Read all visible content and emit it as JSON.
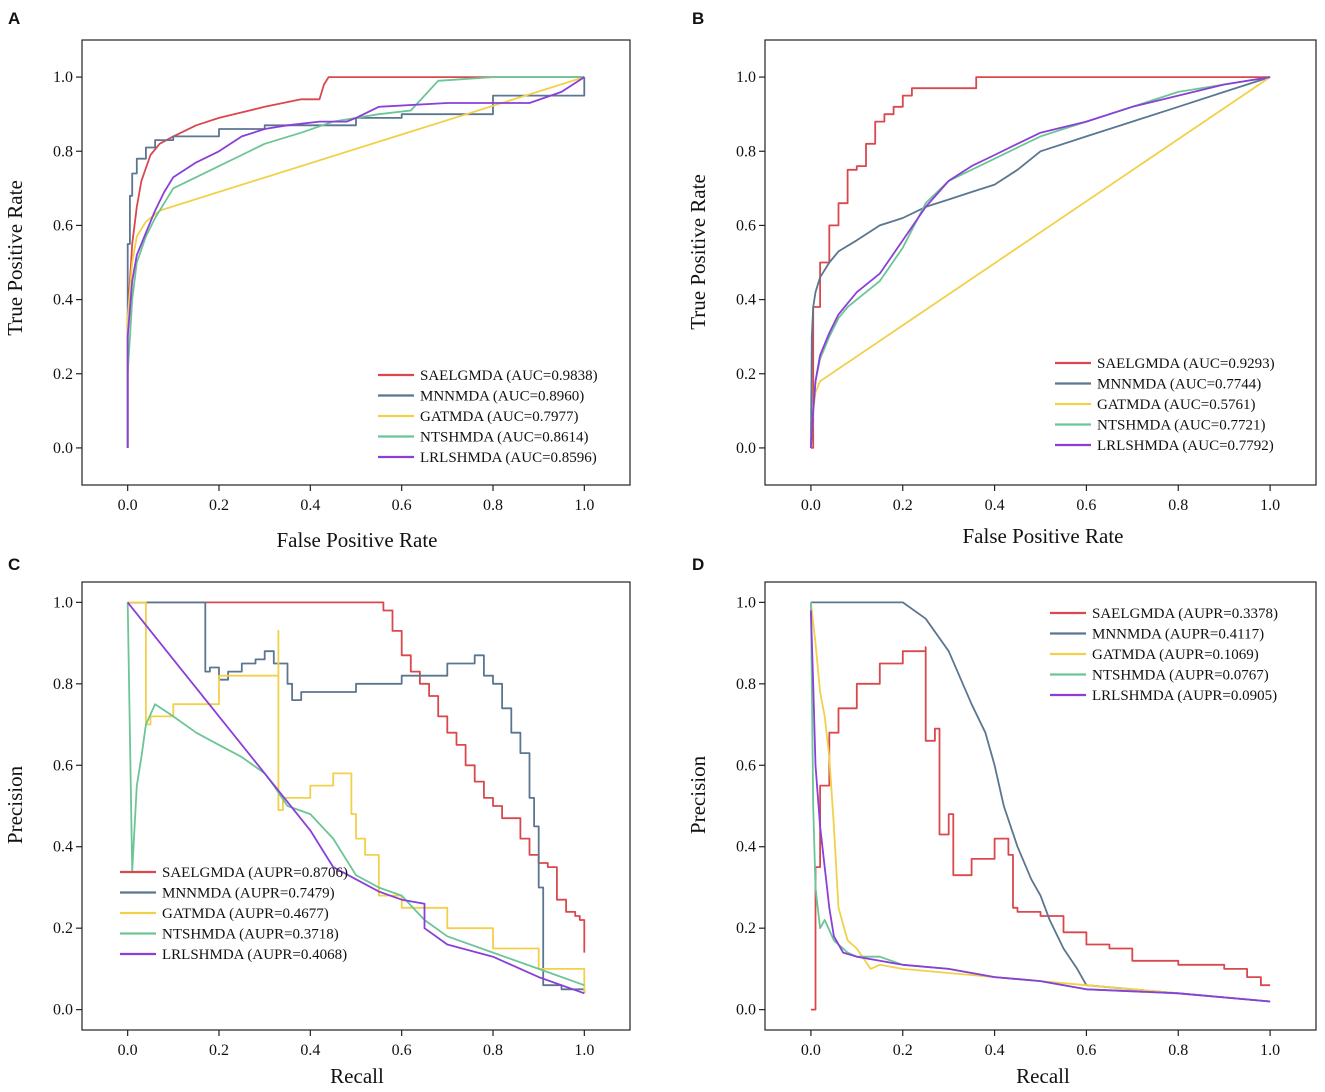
{
  "colors": {
    "SAELGMDA": "#d9484d",
    "MNNMDA": "#5b7690",
    "GATMDA": "#f2d04a",
    "NTSHMDA": "#6cc595",
    "LRLSHMDA": "#8a3fd9"
  },
  "chart_data": [
    {
      "panel": "A",
      "type": "line",
      "xlabel": "False Positive Rate",
      "ylabel": "True Positive Rate",
      "xlim": [
        -0.1,
        1.1
      ],
      "ylim": [
        -0.1,
        1.1
      ],
      "xticks": [
        "0.0",
        "0.2",
        "0.4",
        "0.6",
        "0.8",
        "1.0"
      ],
      "yticks": [
        "0.0",
        "0.2",
        "0.4",
        "0.6",
        "0.8",
        "1.0"
      ],
      "legend_position": "bottom-right",
      "series": [
        {
          "name": "SAELGMDA",
          "label": "SAELGMDA (AUC=0.9838)",
          "x": [
            0,
            0,
            0.01,
            0.02,
            0.03,
            0.05,
            0.07,
            0.1,
            0.15,
            0.2,
            0.3,
            0.38,
            0.42,
            0.43,
            0.44,
            0.5,
            0.7,
            1.0
          ],
          "y": [
            0,
            0.35,
            0.55,
            0.65,
            0.72,
            0.79,
            0.82,
            0.84,
            0.87,
            0.89,
            0.92,
            0.94,
            0.94,
            0.98,
            1.0,
            1.0,
            1.0,
            1.0
          ]
        },
        {
          "name": "MNNMDA",
          "label": "MNNMDA (AUC=0.8960)",
          "x": [
            0,
            0,
            0.005,
            0.01,
            0.02,
            0.04,
            0.06,
            0.1,
            0.2,
            0.3,
            0.5,
            0.6,
            0.8,
            1.0
          ],
          "y": [
            0,
            0.55,
            0.68,
            0.74,
            0.78,
            0.81,
            0.83,
            0.84,
            0.86,
            0.87,
            0.89,
            0.9,
            0.95,
            1.0
          ],
          "style": "step"
        },
        {
          "name": "GATMDA",
          "label": "GATMDA (AUC=0.7977)",
          "x": [
            0,
            0,
            0.01,
            0.02,
            0.04,
            0.06,
            0.07,
            1.0
          ],
          "y": [
            0,
            0.35,
            0.5,
            0.57,
            0.61,
            0.63,
            0.64,
            1.0
          ]
        },
        {
          "name": "NTSHMDA",
          "label": "NTSHMDA (AUC=0.8614)",
          "x": [
            0,
            0,
            0.01,
            0.02,
            0.04,
            0.06,
            0.08,
            0.1,
            0.15,
            0.2,
            0.25,
            0.3,
            0.38,
            0.45,
            0.55,
            0.62,
            0.65,
            0.68,
            0.8,
            0.9,
            1.0
          ],
          "y": [
            0,
            0.2,
            0.4,
            0.5,
            0.57,
            0.62,
            0.66,
            0.7,
            0.73,
            0.76,
            0.79,
            0.82,
            0.85,
            0.88,
            0.9,
            0.91,
            0.95,
            0.99,
            1.0,
            1.0,
            1.0
          ]
        },
        {
          "name": "LRLSHMDA",
          "label": "LRLSHMDA (AUC=0.8596)",
          "x": [
            0,
            0,
            0.01,
            0.02,
            0.04,
            0.06,
            0.08,
            0.1,
            0.15,
            0.2,
            0.25,
            0.3,
            0.35,
            0.42,
            0.48,
            0.5,
            0.55,
            0.7,
            0.8,
            0.88,
            0.95,
            1.0
          ],
          "y": [
            0,
            0.3,
            0.45,
            0.52,
            0.58,
            0.64,
            0.69,
            0.73,
            0.77,
            0.8,
            0.84,
            0.86,
            0.87,
            0.88,
            0.88,
            0.89,
            0.92,
            0.93,
            0.93,
            0.93,
            0.96,
            1.0
          ]
        }
      ]
    },
    {
      "panel": "B",
      "type": "line",
      "xlabel": "False Positive Rate",
      "ylabel": "True Positive Rate",
      "xlim": [
        -0.1,
        1.1
      ],
      "ylim": [
        -0.1,
        1.1
      ],
      "xticks": [
        "0.0",
        "0.2",
        "0.4",
        "0.6",
        "0.8",
        "1.0"
      ],
      "yticks": [
        "0.0",
        "0.2",
        "0.4",
        "0.6",
        "0.8",
        "1.0"
      ],
      "legend_position": "bottom-right",
      "series": [
        {
          "name": "SAELGMDA",
          "label": "SAELGMDA (AUC=0.9293)",
          "x": [
            0,
            0.005,
            0.005,
            0.02,
            0.02,
            0.04,
            0.04,
            0.06,
            0.06,
            0.08,
            0.08,
            0.1,
            0.12,
            0.12,
            0.14,
            0.14,
            0.16,
            0.18,
            0.2,
            0.22,
            0.25,
            0.3,
            0.35,
            0.36,
            0.5,
            0.7,
            1.0
          ],
          "y": [
            0,
            0.32,
            0.38,
            0.38,
            0.5,
            0.55,
            0.6,
            0.66,
            0.66,
            0.72,
            0.75,
            0.76,
            0.8,
            0.82,
            0.86,
            0.88,
            0.9,
            0.92,
            0.95,
            0.97,
            0.97,
            0.97,
            0.97,
            1.0,
            1.0,
            1.0,
            1.0
          ],
          "style": "step"
        },
        {
          "name": "MNNMDA",
          "label": "MNNMDA (AUC=0.7744)",
          "x": [
            0,
            0.002,
            0.005,
            0.01,
            0.02,
            0.04,
            0.06,
            0.1,
            0.15,
            0.2,
            0.25,
            0.3,
            0.35,
            0.4,
            0.45,
            0.5,
            0.6,
            0.7,
            0.8,
            0.9,
            1.0
          ],
          "y": [
            0,
            0.3,
            0.38,
            0.42,
            0.46,
            0.5,
            0.53,
            0.56,
            0.6,
            0.62,
            0.65,
            0.67,
            0.69,
            0.71,
            0.75,
            0.8,
            0.84,
            0.88,
            0.92,
            0.96,
            1.0
          ]
        },
        {
          "name": "GATMDA",
          "label": "GATMDA (AUC=0.5761)",
          "x": [
            0,
            0.005,
            0.01,
            0.02,
            1.0
          ],
          "y": [
            0,
            0.1,
            0.15,
            0.18,
            1.0
          ]
        },
        {
          "name": "NTSHMDA",
          "label": "NTSHMDA (AUC=0.7721)",
          "x": [
            0,
            0.005,
            0.01,
            0.02,
            0.04,
            0.06,
            0.08,
            0.1,
            0.15,
            0.2,
            0.25,
            0.3,
            0.35,
            0.4,
            0.45,
            0.5,
            0.6,
            0.7,
            0.8,
            0.9,
            1.0
          ],
          "y": [
            0,
            0.1,
            0.18,
            0.24,
            0.3,
            0.35,
            0.38,
            0.4,
            0.45,
            0.54,
            0.66,
            0.72,
            0.75,
            0.78,
            0.81,
            0.84,
            0.88,
            0.92,
            0.96,
            0.98,
            1.0
          ]
        },
        {
          "name": "LRLSHMDA",
          "label": "LRLSHMDA (AUC=0.7792)",
          "x": [
            0,
            0.005,
            0.01,
            0.02,
            0.04,
            0.06,
            0.08,
            0.1,
            0.15,
            0.2,
            0.25,
            0.3,
            0.35,
            0.4,
            0.45,
            0.5,
            0.6,
            0.7,
            0.8,
            0.9,
            1.0
          ],
          "y": [
            0,
            0.1,
            0.18,
            0.25,
            0.31,
            0.36,
            0.39,
            0.42,
            0.47,
            0.56,
            0.65,
            0.72,
            0.76,
            0.79,
            0.82,
            0.85,
            0.88,
            0.92,
            0.95,
            0.98,
            1.0
          ]
        }
      ]
    },
    {
      "panel": "C",
      "type": "line",
      "xlabel": "Recall",
      "ylabel": "Precision",
      "xlim": [
        -0.1,
        1.1
      ],
      "ylim": [
        -0.05,
        1.05
      ],
      "xticks": [
        "0.0",
        "0.2",
        "0.4",
        "0.6",
        "0.8",
        "1.0"
      ],
      "yticks": [
        "0.0",
        "0.2",
        "0.4",
        "0.6",
        "0.8",
        "1.0"
      ],
      "legend_position": "bottom-left",
      "series": [
        {
          "name": "SAELGMDA",
          "label": "SAELGMDA (AUPR=0.8706)",
          "x": [
            0,
            0.2,
            0.4,
            0.55,
            0.56,
            0.58,
            0.6,
            0.62,
            0.64,
            0.66,
            0.68,
            0.7,
            0.72,
            0.74,
            0.76,
            0.78,
            0.8,
            0.82,
            0.84,
            0.86,
            0.88,
            0.9,
            0.92,
            0.94,
            0.96,
            0.98,
            0.99,
            1.0
          ],
          "y": [
            1.0,
            1.0,
            1.0,
            1.0,
            0.98,
            0.93,
            0.87,
            0.83,
            0.8,
            0.77,
            0.72,
            0.68,
            0.65,
            0.6,
            0.56,
            0.52,
            0.5,
            0.47,
            0.47,
            0.42,
            0.38,
            0.36,
            0.35,
            0.27,
            0.24,
            0.23,
            0.22,
            0.14
          ],
          "style": "step"
        },
        {
          "name": "MNNMDA",
          "label": "MNNMDA (AUPR=0.7479)",
          "x": [
            0,
            0.17,
            0.17,
            0.18,
            0.2,
            0.22,
            0.25,
            0.28,
            0.3,
            0.32,
            0.33,
            0.35,
            0.36,
            0.38,
            0.4,
            0.5,
            0.6,
            0.7,
            0.76,
            0.78,
            0.8,
            0.82,
            0.84,
            0.86,
            0.88,
            0.89,
            0.9,
            0.91,
            0.95,
            1.0
          ],
          "y": [
            1.0,
            1.0,
            0.83,
            0.84,
            0.81,
            0.83,
            0.85,
            0.86,
            0.88,
            0.85,
            0.85,
            0.8,
            0.76,
            0.78,
            0.78,
            0.8,
            0.82,
            0.85,
            0.87,
            0.82,
            0.8,
            0.74,
            0.68,
            0.63,
            0.52,
            0.45,
            0.3,
            0.06,
            0.05,
            0.04
          ],
          "style": "step"
        },
        {
          "name": "GATMDA",
          "label": "GATMDA (AUPR=0.4677)",
          "x": [
            0,
            0.04,
            0.04,
            0.05,
            0.1,
            0.2,
            0.33,
            0.33,
            0.34,
            0.4,
            0.45,
            0.49,
            0.5,
            0.52,
            0.55,
            0.55,
            0.6,
            0.7,
            0.8,
            0.9,
            1.0
          ],
          "y": [
            1.0,
            1.0,
            0.7,
            0.72,
            0.75,
            0.82,
            0.93,
            0.49,
            0.52,
            0.55,
            0.58,
            0.48,
            0.42,
            0.38,
            0.34,
            0.28,
            0.25,
            0.2,
            0.15,
            0.1,
            0.04
          ],
          "style": "step"
        },
        {
          "name": "NTSHMDA",
          "label": "NTSHMDA (AUPR=0.3718)",
          "x": [
            0,
            0.01,
            0.02,
            0.03,
            0.04,
            0.06,
            0.1,
            0.15,
            0.2,
            0.25,
            0.3,
            0.32,
            0.35,
            0.4,
            0.45,
            0.5,
            0.55,
            0.6,
            0.65,
            0.7,
            0.8,
            0.9,
            1.0
          ],
          "y": [
            1.0,
            0.34,
            0.55,
            0.62,
            0.7,
            0.75,
            0.72,
            0.68,
            0.65,
            0.62,
            0.58,
            0.55,
            0.5,
            0.48,
            0.42,
            0.33,
            0.3,
            0.28,
            0.22,
            0.18,
            0.14,
            0.1,
            0.06
          ]
        },
        {
          "name": "LRLSHMDA",
          "label": "LRLSHMDA (AUPR=0.4068)",
          "x": [
            0,
            0.1,
            0.2,
            0.3,
            0.4,
            0.45,
            0.5,
            0.55,
            0.6,
            0.65,
            0.65,
            0.7,
            0.8,
            0.9,
            1.0
          ],
          "y": [
            1.0,
            0.86,
            0.72,
            0.58,
            0.44,
            0.35,
            0.32,
            0.29,
            0.27,
            0.26,
            0.2,
            0.16,
            0.13,
            0.08,
            0.04
          ]
        }
      ]
    },
    {
      "panel": "D",
      "type": "line",
      "xlabel": "Recall",
      "ylabel": "Precision",
      "xlim": [
        -0.1,
        1.1
      ],
      "ylim": [
        -0.05,
        1.05
      ],
      "xticks": [
        "0.0",
        "0.2",
        "0.4",
        "0.6",
        "0.8",
        "1.0"
      ],
      "yticks": [
        "0.0",
        "0.2",
        "0.4",
        "0.6",
        "0.8",
        "1.0"
      ],
      "legend_position": "top-right",
      "series": [
        {
          "name": "SAELGMDA",
          "label": "SAELGMDA (AUPR=0.3378)",
          "x": [
            0,
            0.01,
            0.02,
            0.04,
            0.06,
            0.1,
            0.15,
            0.2,
            0.25,
            0.25,
            0.27,
            0.28,
            0.3,
            0.31,
            0.35,
            0.4,
            0.43,
            0.44,
            0.45,
            0.5,
            0.55,
            0.6,
            0.65,
            0.7,
            0.8,
            0.9,
            0.95,
            0.98,
            1.0
          ],
          "y": [
            0,
            0.35,
            0.55,
            0.68,
            0.74,
            0.8,
            0.85,
            0.88,
            0.89,
            0.66,
            0.69,
            0.43,
            0.48,
            0.33,
            0.37,
            0.42,
            0.38,
            0.25,
            0.24,
            0.23,
            0.19,
            0.16,
            0.15,
            0.12,
            0.11,
            0.1,
            0.08,
            0.06,
            0.06
          ],
          "style": "step"
        },
        {
          "name": "MNNMDA",
          "label": "MNNMDA (AUPR=0.4117)",
          "x": [
            0,
            0.2,
            0.25,
            0.3,
            0.35,
            0.38,
            0.4,
            0.42,
            0.45,
            0.48,
            0.5,
            0.52,
            0.55,
            0.58,
            0.6,
            0.7,
            0.8,
            0.9,
            1.0
          ],
          "y": [
            1.0,
            1.0,
            0.96,
            0.88,
            0.75,
            0.68,
            0.6,
            0.5,
            0.4,
            0.32,
            0.28,
            0.22,
            0.15,
            0.1,
            0.06,
            0.05,
            0.04,
            0.03,
            0.02
          ]
        },
        {
          "name": "GATMDA",
          "label": "GATMDA (AUPR=0.1069)",
          "x": [
            0,
            0.01,
            0.02,
            0.03,
            0.04,
            0.05,
            0.06,
            0.08,
            0.1,
            0.13,
            0.15,
            0.2,
            0.3,
            0.4,
            0.5,
            0.6,
            0.8,
            1.0
          ],
          "y": [
            1.0,
            0.9,
            0.78,
            0.72,
            0.62,
            0.45,
            0.25,
            0.17,
            0.15,
            0.1,
            0.11,
            0.1,
            0.09,
            0.08,
            0.07,
            0.06,
            0.04,
            0.02
          ]
        },
        {
          "name": "NTSHMDA",
          "label": "NTSHMDA (AUPR=0.0767)",
          "x": [
            0,
            0.005,
            0.01,
            0.02,
            0.03,
            0.05,
            0.08,
            0.1,
            0.15,
            0.2,
            0.3,
            0.4,
            0.5,
            0.6,
            0.8,
            1.0
          ],
          "y": [
            1.0,
            0.5,
            0.3,
            0.2,
            0.22,
            0.17,
            0.14,
            0.13,
            0.13,
            0.11,
            0.1,
            0.08,
            0.07,
            0.05,
            0.04,
            0.02
          ]
        },
        {
          "name": "LRLSHMDA",
          "label": "LRLSHMDA (AUPR=0.0905)",
          "x": [
            0,
            0.005,
            0.01,
            0.02,
            0.03,
            0.04,
            0.05,
            0.07,
            0.1,
            0.15,
            0.2,
            0.3,
            0.4,
            0.5,
            0.6,
            0.8,
            1.0
          ],
          "y": [
            0.98,
            0.8,
            0.6,
            0.45,
            0.35,
            0.25,
            0.18,
            0.14,
            0.13,
            0.12,
            0.11,
            0.1,
            0.08,
            0.07,
            0.05,
            0.04,
            0.02
          ]
        }
      ]
    }
  ]
}
